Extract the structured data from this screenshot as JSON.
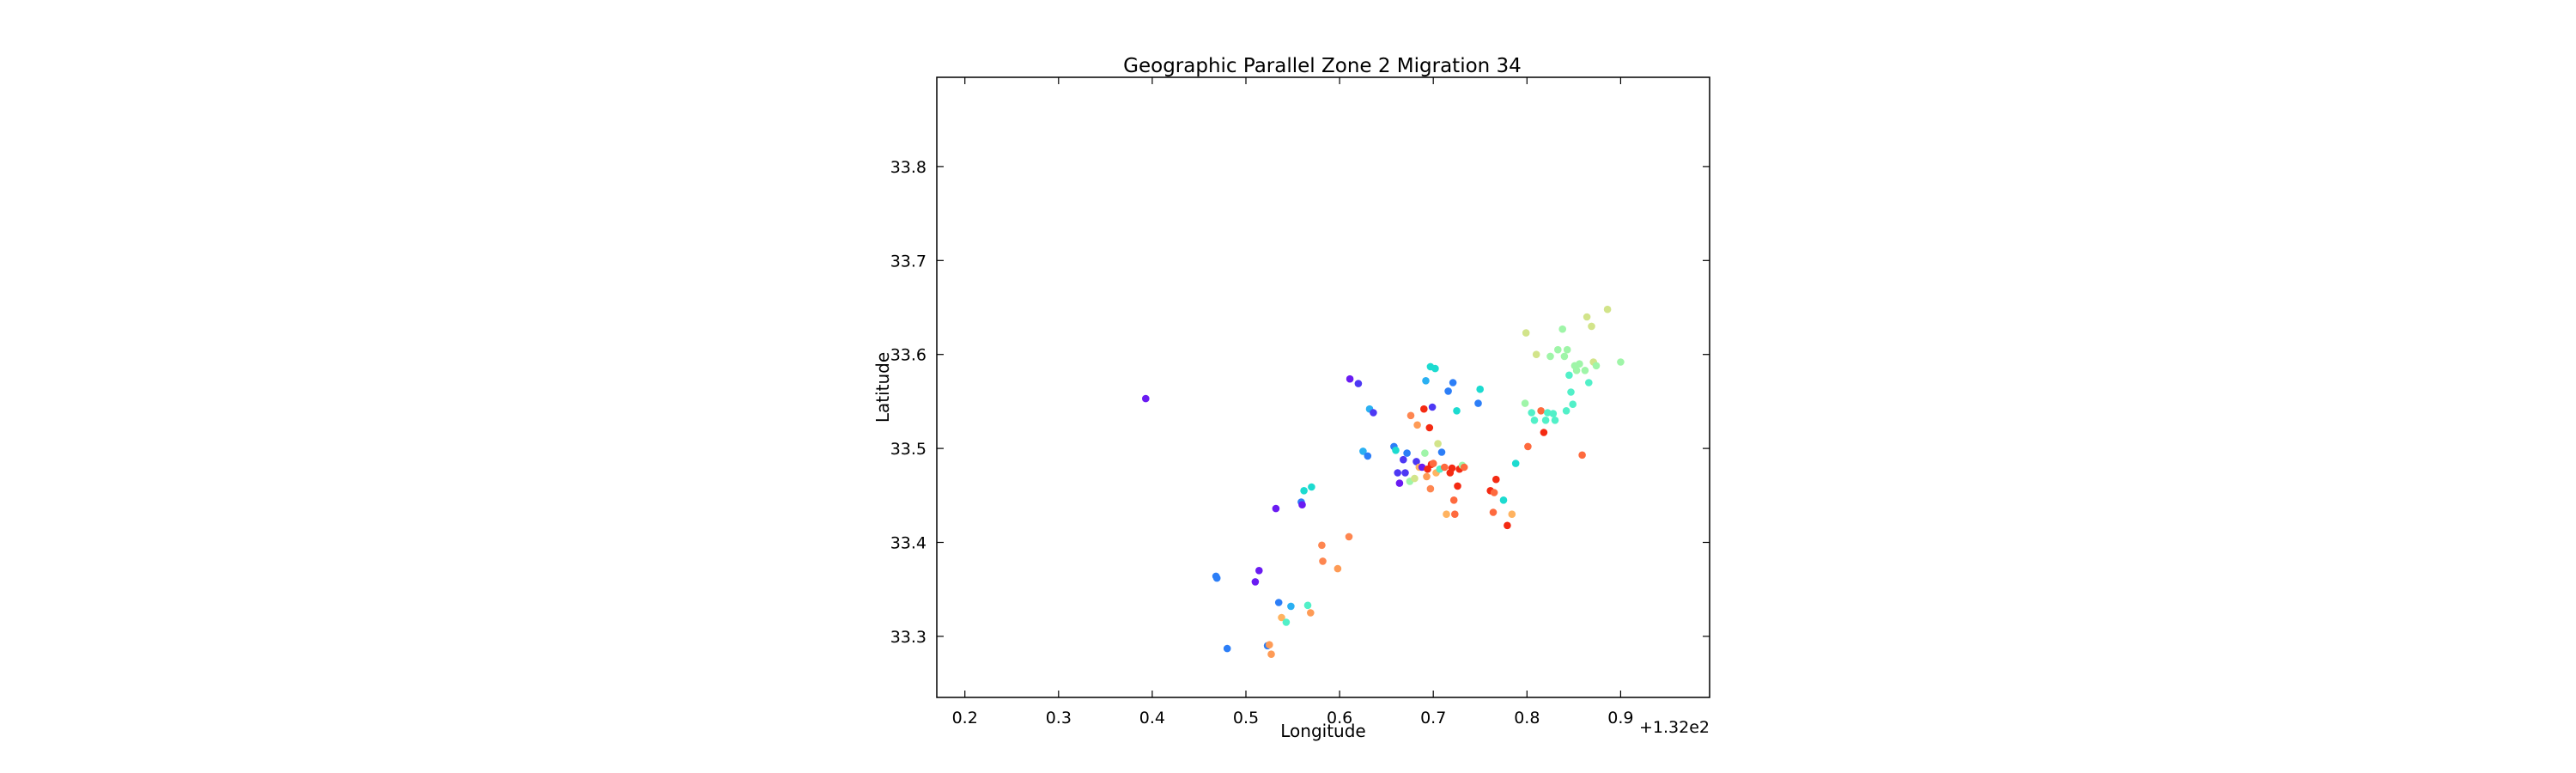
{
  "chart_data": {
    "type": "scatter",
    "title": "Geographic Parallel Zone 2 Migration 34",
    "xlabel": "Longitude",
    "ylabel": "Latitude",
    "x_offset_label": "+1.32e2",
    "xlim": [
      132.17,
      132.995
    ],
    "ylim": [
      33.235,
      33.895
    ],
    "x_ticks": [
      132.2,
      132.3,
      132.4,
      132.5,
      132.6,
      132.7,
      132.8,
      132.9
    ],
    "x_tick_labels": [
      "0.2",
      "0.3",
      "0.4",
      "0.5",
      "0.6",
      "0.7",
      "0.8",
      "0.9"
    ],
    "y_ticks": [
      33.3,
      33.4,
      33.5,
      33.6,
      33.7,
      33.8
    ],
    "y_tick_labels": [
      "33.3",
      "33.4",
      "33.5",
      "33.6",
      "33.7",
      "33.8"
    ],
    "grid": false,
    "legend": "none",
    "colormap": "rainbow",
    "points": [
      {
        "x": 132.393,
        "y": 33.553,
        "color": "#6a1bf2"
      },
      {
        "x": 132.468,
        "y": 33.364,
        "color": "#2c7ef7"
      },
      {
        "x": 132.469,
        "y": 33.362,
        "color": "#2c7ef7"
      },
      {
        "x": 132.48,
        "y": 33.287,
        "color": "#2c7ef7"
      },
      {
        "x": 132.51,
        "y": 33.358,
        "color": "#6a1bf2"
      },
      {
        "x": 132.514,
        "y": 33.37,
        "color": "#6a1bf2"
      },
      {
        "x": 132.523,
        "y": 33.29,
        "color": "#2c7ef7"
      },
      {
        "x": 132.525,
        "y": 33.291,
        "color": "#fe9b56"
      },
      {
        "x": 132.527,
        "y": 33.281,
        "color": "#fe9b56"
      },
      {
        "x": 132.532,
        "y": 33.436,
        "color": "#6a1bf2"
      },
      {
        "x": 132.535,
        "y": 33.336,
        "color": "#2c7ef7"
      },
      {
        "x": 132.538,
        "y": 33.32,
        "color": "#ffb360"
      },
      {
        "x": 132.543,
        "y": 33.315,
        "color": "#52f0c8"
      },
      {
        "x": 132.548,
        "y": 33.332,
        "color": "#2ab0f2"
      },
      {
        "x": 132.559,
        "y": 33.443,
        "color": "#2c7ef7"
      },
      {
        "x": 132.56,
        "y": 33.44,
        "color": "#6a1bf2"
      },
      {
        "x": 132.562,
        "y": 33.455,
        "color": "#1cdbd0"
      },
      {
        "x": 132.566,
        "y": 33.333,
        "color": "#52f0c8"
      },
      {
        "x": 132.569,
        "y": 33.325,
        "color": "#fe9b56"
      },
      {
        "x": 132.57,
        "y": 33.459,
        "color": "#1cdbd0"
      },
      {
        "x": 132.581,
        "y": 33.397,
        "color": "#fe8650"
      },
      {
        "x": 132.582,
        "y": 33.38,
        "color": "#fe8650"
      },
      {
        "x": 132.598,
        "y": 33.372,
        "color": "#fe9b56"
      },
      {
        "x": 132.61,
        "y": 33.406,
        "color": "#fe8650"
      },
      {
        "x": 132.611,
        "y": 33.574,
        "color": "#6a1bf2"
      },
      {
        "x": 132.62,
        "y": 33.569,
        "color": "#4d38f4"
      },
      {
        "x": 132.625,
        "y": 33.497,
        "color": "#2ab0f2"
      },
      {
        "x": 132.63,
        "y": 33.492,
        "color": "#2c7ef7"
      },
      {
        "x": 132.632,
        "y": 33.542,
        "color": "#2ab0f2"
      },
      {
        "x": 132.636,
        "y": 33.538,
        "color": "#4d38f4"
      },
      {
        "x": 132.658,
        "y": 33.502,
        "color": "#2c7ef7"
      },
      {
        "x": 132.66,
        "y": 33.498,
        "color": "#1cdbd0"
      },
      {
        "x": 132.662,
        "y": 33.474,
        "color": "#4d38f4"
      },
      {
        "x": 132.664,
        "y": 33.463,
        "color": "#6a1bf2"
      },
      {
        "x": 132.668,
        "y": 33.488,
        "color": "#4d38f4"
      },
      {
        "x": 132.67,
        "y": 33.474,
        "color": "#4d38f4"
      },
      {
        "x": 132.672,
        "y": 33.495,
        "color": "#2c7ef7"
      },
      {
        "x": 132.675,
        "y": 33.465,
        "color": "#9ff5a8"
      },
      {
        "x": 132.676,
        "y": 33.535,
        "color": "#fe8650"
      },
      {
        "x": 132.68,
        "y": 33.468,
        "color": "#d2e48a"
      },
      {
        "x": 132.682,
        "y": 33.486,
        "color": "#4d38f4"
      },
      {
        "x": 132.683,
        "y": 33.525,
        "color": "#fe9b56"
      },
      {
        "x": 132.685,
        "y": 33.48,
        "color": "#ffb360"
      },
      {
        "x": 132.688,
        "y": 33.48,
        "color": "#6a1bf2"
      },
      {
        "x": 132.69,
        "y": 33.542,
        "color": "#f42a12"
      },
      {
        "x": 132.691,
        "y": 33.495,
        "color": "#9ff5a8"
      },
      {
        "x": 132.692,
        "y": 33.572,
        "color": "#2ab0f2"
      },
      {
        "x": 132.693,
        "y": 33.47,
        "color": "#fe9b56"
      },
      {
        "x": 132.694,
        "y": 33.478,
        "color": "#f42a12"
      },
      {
        "x": 132.696,
        "y": 33.522,
        "color": "#f42a12"
      },
      {
        "x": 132.697,
        "y": 33.457,
        "color": "#fe8650"
      },
      {
        "x": 132.697,
        "y": 33.587,
        "color": "#1cdbd0"
      },
      {
        "x": 132.698,
        "y": 33.483,
        "color": "#f42a12"
      },
      {
        "x": 132.699,
        "y": 33.544,
        "color": "#4d38f4"
      },
      {
        "x": 132.7,
        "y": 33.484,
        "color": "#fe6a3e"
      },
      {
        "x": 132.702,
        "y": 33.585,
        "color": "#1cdbd0"
      },
      {
        "x": 132.703,
        "y": 33.474,
        "color": "#ffb360"
      },
      {
        "x": 132.705,
        "y": 33.505,
        "color": "#d2e48a"
      },
      {
        "x": 132.707,
        "y": 33.478,
        "color": "#52f0c8"
      },
      {
        "x": 132.709,
        "y": 33.496,
        "color": "#2c7ef7"
      },
      {
        "x": 132.712,
        "y": 33.48,
        "color": "#fe6a3e"
      },
      {
        "x": 132.714,
        "y": 33.43,
        "color": "#ffb360"
      },
      {
        "x": 132.716,
        "y": 33.561,
        "color": "#2c7ef7"
      },
      {
        "x": 132.718,
        "y": 33.474,
        "color": "#f42a12"
      },
      {
        "x": 132.72,
        "y": 33.479,
        "color": "#f42a12"
      },
      {
        "x": 132.721,
        "y": 33.57,
        "color": "#2c7ef7"
      },
      {
        "x": 132.722,
        "y": 33.445,
        "color": "#fe6a3e"
      },
      {
        "x": 132.723,
        "y": 33.43,
        "color": "#fe6a3e"
      },
      {
        "x": 132.725,
        "y": 33.54,
        "color": "#1cdbd0"
      },
      {
        "x": 132.726,
        "y": 33.46,
        "color": "#f42a12"
      },
      {
        "x": 132.728,
        "y": 33.478,
        "color": "#f42a12"
      },
      {
        "x": 132.731,
        "y": 33.482,
        "color": "#9ff5a8"
      },
      {
        "x": 132.733,
        "y": 33.48,
        "color": "#fe6a3e"
      },
      {
        "x": 132.748,
        "y": 33.548,
        "color": "#2c7ef7"
      },
      {
        "x": 132.75,
        "y": 33.563,
        "color": "#1cdbd0"
      },
      {
        "x": 132.761,
        "y": 33.455,
        "color": "#f42a12"
      },
      {
        "x": 132.764,
        "y": 33.432,
        "color": "#fe6a3e"
      },
      {
        "x": 132.765,
        "y": 33.453,
        "color": "#fe6a3e"
      },
      {
        "x": 132.767,
        "y": 33.467,
        "color": "#f42a12"
      },
      {
        "x": 132.775,
        "y": 33.445,
        "color": "#1cdbd0"
      },
      {
        "x": 132.779,
        "y": 33.418,
        "color": "#f42a12"
      },
      {
        "x": 132.784,
        "y": 33.43,
        "color": "#ffb360"
      },
      {
        "x": 132.788,
        "y": 33.484,
        "color": "#1cdbd0"
      },
      {
        "x": 132.798,
        "y": 33.548,
        "color": "#9ff5a8"
      },
      {
        "x": 132.799,
        "y": 33.623,
        "color": "#d2e48a"
      },
      {
        "x": 132.801,
        "y": 33.502,
        "color": "#fe6a3e"
      },
      {
        "x": 132.805,
        "y": 33.538,
        "color": "#52f0c8"
      },
      {
        "x": 132.808,
        "y": 33.53,
        "color": "#52f0c8"
      },
      {
        "x": 132.81,
        "y": 33.6,
        "color": "#d2e48a"
      },
      {
        "x": 132.815,
        "y": 33.54,
        "color": "#fe6a3e"
      },
      {
        "x": 132.818,
        "y": 33.517,
        "color": "#f42a12"
      },
      {
        "x": 132.82,
        "y": 33.53,
        "color": "#52f0c8"
      },
      {
        "x": 132.822,
        "y": 33.538,
        "color": "#52f0c8"
      },
      {
        "x": 132.825,
        "y": 33.598,
        "color": "#9ff5a8"
      },
      {
        "x": 132.828,
        "y": 33.537,
        "color": "#52f0c8"
      },
      {
        "x": 132.83,
        "y": 33.53,
        "color": "#52f0c8"
      },
      {
        "x": 132.833,
        "y": 33.605,
        "color": "#9ff5a8"
      },
      {
        "x": 132.838,
        "y": 33.627,
        "color": "#9ff5a8"
      },
      {
        "x": 132.84,
        "y": 33.598,
        "color": "#9ff5a8"
      },
      {
        "x": 132.842,
        "y": 33.54,
        "color": "#52f0c8"
      },
      {
        "x": 132.843,
        "y": 33.605,
        "color": "#9ff5a8"
      },
      {
        "x": 132.845,
        "y": 33.578,
        "color": "#52f0c8"
      },
      {
        "x": 132.847,
        "y": 33.56,
        "color": "#52f0c8"
      },
      {
        "x": 132.849,
        "y": 33.547,
        "color": "#52f0c8"
      },
      {
        "x": 132.851,
        "y": 33.588,
        "color": "#9ff5a8"
      },
      {
        "x": 132.853,
        "y": 33.583,
        "color": "#9ff5a8"
      },
      {
        "x": 132.856,
        "y": 33.59,
        "color": "#9ff5a8"
      },
      {
        "x": 132.859,
        "y": 33.493,
        "color": "#fe6a3e"
      },
      {
        "x": 132.862,
        "y": 33.583,
        "color": "#9ff5a8"
      },
      {
        "x": 132.864,
        "y": 33.64,
        "color": "#d2e48a"
      },
      {
        "x": 132.866,
        "y": 33.57,
        "color": "#52f0c8"
      },
      {
        "x": 132.869,
        "y": 33.63,
        "color": "#d2e48a"
      },
      {
        "x": 132.871,
        "y": 33.592,
        "color": "#d2e48a"
      },
      {
        "x": 132.874,
        "y": 33.588,
        "color": "#9ff5a8"
      },
      {
        "x": 132.886,
        "y": 33.648,
        "color": "#d2e48a"
      },
      {
        "x": 132.9,
        "y": 33.592,
        "color": "#9ff5a8"
      }
    ]
  }
}
